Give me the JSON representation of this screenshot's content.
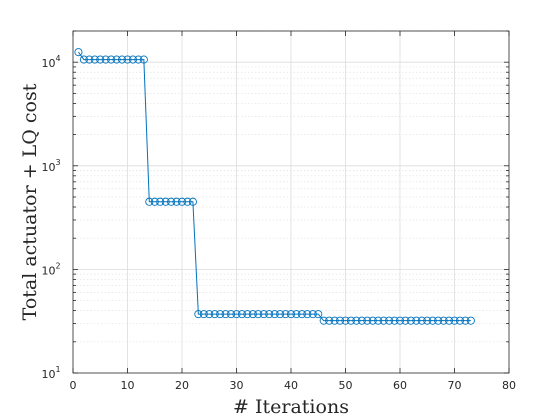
{
  "chart_data": {
    "type": "line",
    "xlabel": "# Iterations",
    "ylabel": "Total actuator + LQ cost",
    "xlim": [
      0,
      80
    ],
    "ylim": [
      10,
      20000
    ],
    "yscale": "log",
    "grid": true,
    "x_ticks": [
      0,
      10,
      20,
      30,
      40,
      50,
      60,
      70,
      80
    ],
    "y_ticks": [
      10,
      100,
      1000,
      10000
    ],
    "y_tick_labels": [
      {
        "base": "10",
        "exp": "1"
      },
      {
        "base": "10",
        "exp": "2"
      },
      {
        "base": "10",
        "exp": "3"
      },
      {
        "base": "10",
        "exp": "4"
      }
    ],
    "series": [
      {
        "color": "#0072bd",
        "marker": "circle-open",
        "x": [
          1,
          2,
          3,
          4,
          5,
          6,
          7,
          8,
          9,
          10,
          11,
          12,
          13,
          14,
          15,
          16,
          17,
          18,
          19,
          20,
          21,
          22,
          23,
          24,
          25,
          26,
          27,
          28,
          29,
          30,
          31,
          32,
          33,
          34,
          35,
          36,
          37,
          38,
          39,
          40,
          41,
          42,
          43,
          44,
          45,
          46,
          47,
          48,
          49,
          50,
          51,
          52,
          53,
          54,
          55,
          56,
          57,
          58,
          59,
          60,
          61,
          62,
          63,
          64,
          65,
          66,
          67,
          68,
          69,
          70,
          71,
          72,
          73
        ],
        "y": [
          12500,
          10600,
          10600,
          10600,
          10600,
          10600,
          10600,
          10600,
          10600,
          10600,
          10600,
          10600,
          10600,
          450,
          450,
          450,
          450,
          450,
          450,
          450,
          450,
          450,
          37,
          37,
          37,
          37,
          37,
          37,
          37,
          37,
          37,
          37,
          37,
          37,
          37,
          37,
          37,
          37,
          37,
          37,
          37,
          37,
          37,
          37,
          37,
          32,
          32,
          32,
          32,
          32,
          32,
          32,
          32,
          32,
          32,
          32,
          32,
          32,
          32,
          32,
          32,
          32,
          32,
          32,
          32,
          32,
          32,
          32,
          32,
          32,
          32,
          32,
          32
        ]
      }
    ]
  }
}
